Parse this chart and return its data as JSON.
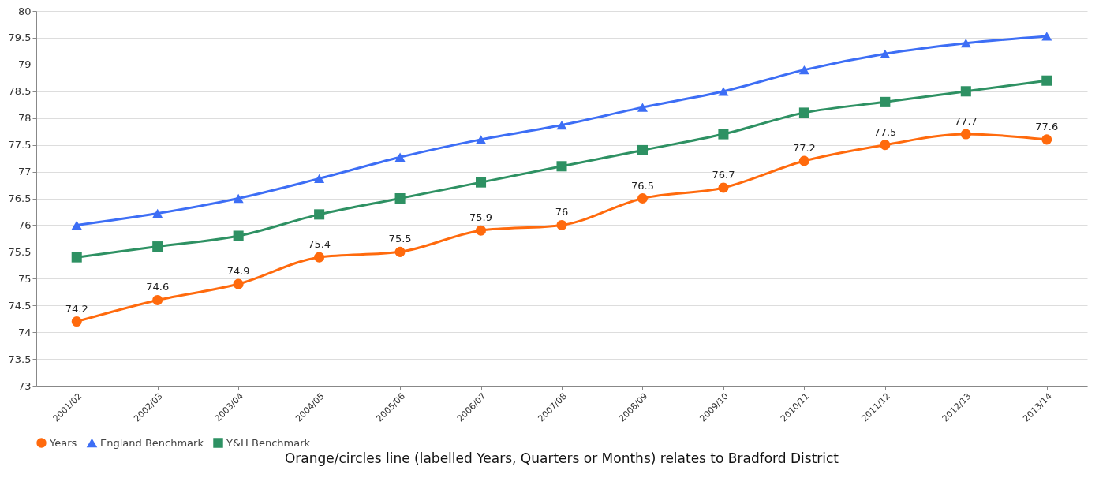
{
  "chart_data": {
    "type": "line",
    "categories": [
      "2001/02",
      "2002/03",
      "2003/04",
      "2004/05",
      "2005/06",
      "2006/07",
      "2007/08",
      "2008/09",
      "2009/10",
      "2010/11",
      "2011/12",
      "2012/13",
      "2013/14"
    ],
    "series": [
      {
        "name": "Years",
        "color": "#ff6a0d",
        "marker": "circle",
        "values": [
          74.2,
          74.6,
          74.9,
          75.4,
          75.5,
          75.9,
          76,
          76.5,
          76.7,
          77.2,
          77.5,
          77.7,
          77.6
        ],
        "value_labels": [
          "74.2",
          "74.6",
          "74.9",
          "75.4",
          "75.5",
          "75.9",
          "76",
          "76.5",
          "76.7",
          "77.2",
          "77.5",
          "77.7",
          "77.6"
        ]
      },
      {
        "name": "England Benchmark",
        "color": "#3d6ef5",
        "marker": "triangle",
        "values": [
          76,
          76.22,
          76.5,
          76.87,
          77.27,
          77.6,
          77.87,
          78.2,
          78.5,
          78.9,
          79.2,
          79.4,
          79.53
        ]
      },
      {
        "name": "Y&H Benchmark",
        "color": "#2e9163",
        "marker": "square",
        "values": [
          75.4,
          75.6,
          75.8,
          76.2,
          76.5,
          76.8,
          77.1,
          77.4,
          77.7,
          78.1,
          78.3,
          78.5,
          78.7
        ]
      }
    ],
    "ylim": [
      73,
      80
    ],
    "yticks": [
      73,
      73.5,
      74,
      74.5,
      75,
      75.5,
      76,
      76.5,
      77,
      77.5,
      78,
      78.5,
      79,
      79.5,
      80
    ],
    "grid": "y",
    "legend": "bottom",
    "annotations": [
      "Orange/circles line (labelled Years, Quarters or Months) relates to Bradford District"
    ]
  }
}
